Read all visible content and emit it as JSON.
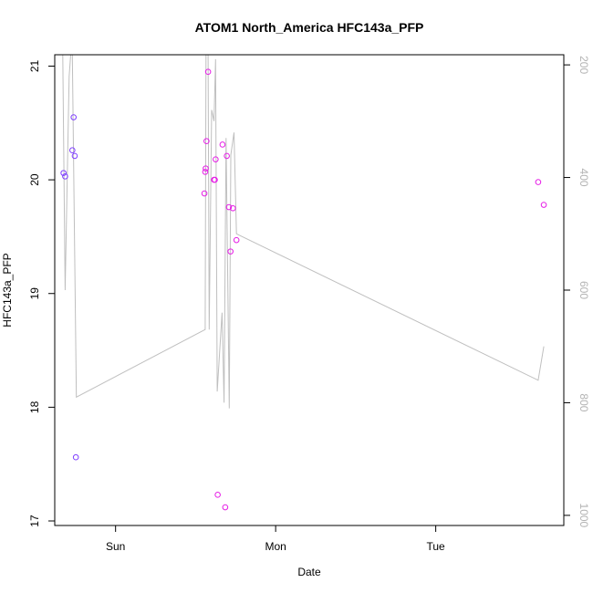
{
  "chart_data": {
    "type": "scatter",
    "title": "ATOM1 North_America HFC143a_PFP",
    "xlabel": "Date",
    "ylabel": "HFC143a_PFP",
    "x_ticks": [
      {
        "label": "Sun",
        "value": 0
      },
      {
        "label": "Mon",
        "value": 1
      },
      {
        "label": "Tue",
        "value": 2
      }
    ],
    "xlim": [
      -0.38,
      2.8
    ],
    "ylim": [
      16.96,
      21.1
    ],
    "y_ticks": [
      17,
      18,
      19,
      20,
      21
    ],
    "y2lim": [
      1018,
      182
    ],
    "y2_ticks": [
      200,
      400,
      600,
      800,
      1000
    ],
    "line_color": "#bfbfbf",
    "grid": false,
    "points": [
      {
        "x": -0.325,
        "y": 20.06,
        "color": "#7f3fff"
      },
      {
        "x": -0.315,
        "y": 20.03,
        "color": "#7f3fff"
      },
      {
        "x": -0.27,
        "y": 20.26,
        "color": "#7f3fff"
      },
      {
        "x": -0.262,
        "y": 20.55,
        "color": "#7f3fff"
      },
      {
        "x": -0.255,
        "y": 20.21,
        "color": "#7f3fff"
      },
      {
        "x": -0.248,
        "y": 17.56,
        "color": "#7f3fff"
      },
      {
        "x": 0.555,
        "y": 19.88,
        "color": "#e61ee6"
      },
      {
        "x": 0.56,
        "y": 20.07,
        "color": "#e61ee6"
      },
      {
        "x": 0.563,
        "y": 20.1,
        "color": "#e61ee6"
      },
      {
        "x": 0.568,
        "y": 20.34,
        "color": "#e61ee6"
      },
      {
        "x": 0.578,
        "y": 20.95,
        "color": "#e61ee6"
      },
      {
        "x": 0.615,
        "y": 20.0,
        "color": "#e61ee6"
      },
      {
        "x": 0.62,
        "y": 20.0,
        "color": "#e61ee6"
      },
      {
        "x": 0.625,
        "y": 20.18,
        "color": "#e61ee6"
      },
      {
        "x": 0.638,
        "y": 17.23,
        "color": "#e61ee6"
      },
      {
        "x": 0.668,
        "y": 20.31,
        "color": "#e61ee6"
      },
      {
        "x": 0.685,
        "y": 17.12,
        "color": "#e61ee6"
      },
      {
        "x": 0.695,
        "y": 20.21,
        "color": "#e61ee6"
      },
      {
        "x": 0.708,
        "y": 19.76,
        "color": "#e61ee6"
      },
      {
        "x": 0.718,
        "y": 19.37,
        "color": "#e61ee6"
      },
      {
        "x": 0.733,
        "y": 19.75,
        "color": "#e61ee6"
      },
      {
        "x": 0.755,
        "y": 19.47,
        "color": "#e61ee6"
      },
      {
        "x": 2.64,
        "y": 19.98,
        "color": "#e61ee6"
      },
      {
        "x": 2.675,
        "y": 19.78,
        "color": "#e61ee6"
      }
    ],
    "line_series": [
      {
        "x": -0.33,
        "y2": 182
      },
      {
        "x": -0.315,
        "y2": 600
      },
      {
        "x": -0.29,
        "y2": 220
      },
      {
        "x": -0.28,
        "y2": 182
      },
      {
        "x": -0.27,
        "y2": 182
      },
      {
        "x": -0.245,
        "y2": 790
      },
      {
        "x": 0.56,
        "y2": 670
      },
      {
        "x": 0.565,
        "y2": 182
      },
      {
        "x": 0.578,
        "y2": 182
      },
      {
        "x": 0.585,
        "y2": 670
      },
      {
        "x": 0.6,
        "y2": 280
      },
      {
        "x": 0.615,
        "y2": 300
      },
      {
        "x": 0.625,
        "y2": 190
      },
      {
        "x": 0.635,
        "y2": 780
      },
      {
        "x": 0.665,
        "y2": 640
      },
      {
        "x": 0.678,
        "y2": 800
      },
      {
        "x": 0.69,
        "y2": 330
      },
      {
        "x": 0.71,
        "y2": 810
      },
      {
        "x": 0.72,
        "y2": 360
      },
      {
        "x": 0.74,
        "y2": 320
      },
      {
        "x": 0.755,
        "y2": 500
      },
      {
        "x": 2.64,
        "y2": 760
      },
      {
        "x": 2.675,
        "y2": 700
      }
    ]
  }
}
